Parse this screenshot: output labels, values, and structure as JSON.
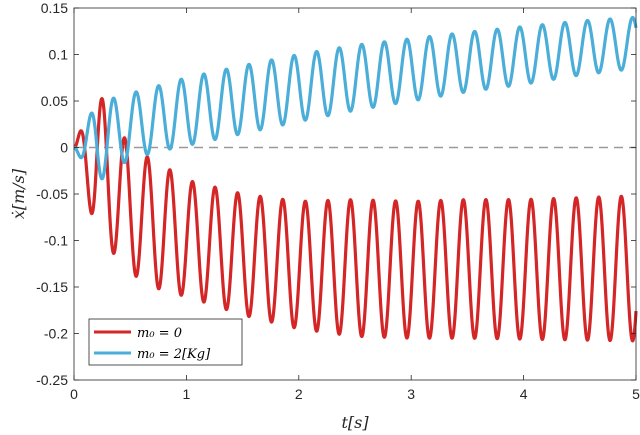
{
  "chart_data": {
    "type": "line",
    "xlabel": "t[s]",
    "ylabel": "ẋ[m/s]",
    "xlim": [
      0,
      5
    ],
    "ylim": [
      -0.25,
      0.15
    ],
    "xticks": [
      "0",
      "1",
      "2",
      "3",
      "4",
      "5"
    ],
    "yticks": [
      "0.15",
      "0.1",
      "0.05",
      "0",
      "-0.05",
      "-0.1",
      "-0.15",
      "-0.2",
      "-0.25"
    ],
    "grid": false,
    "legend_position": "bottom-left",
    "reference_line": {
      "y": 0,
      "style": "dashed",
      "color": "#999999"
    },
    "series": [
      {
        "name": "m₀ = 0",
        "color": "#d42626",
        "frequency_hz": 4.98,
        "points": {
          "x": [
            0,
            0.2,
            0.5,
            0.8,
            1.0,
            1.5,
            2.0,
            2.5,
            3.0,
            3.5,
            4.0,
            4.5,
            5.0
          ],
          "upper": [
            0.0,
            0.063,
            0.0,
            -0.02,
            -0.035,
            -0.05,
            -0.058,
            -0.056,
            -0.058,
            -0.056,
            -0.056,
            -0.054,
            -0.052
          ],
          "lower": [
            0.0,
            -0.092,
            -0.135,
            -0.155,
            -0.16,
            -0.18,
            -0.195,
            -0.203,
            -0.205,
            -0.205,
            -0.206,
            -0.207,
            -0.208
          ]
        }
      },
      {
        "name": "m₀ = 2[Kg]",
        "color": "#4aaed9",
        "frequency_hz": 4.98,
        "points": {
          "x": [
            0,
            0.2,
            0.5,
            0.8,
            1.0,
            1.5,
            2.0,
            2.5,
            3.0,
            3.5,
            4.0,
            4.5,
            5.0
          ],
          "upper": [
            0.0,
            0.048,
            0.058,
            0.068,
            0.075,
            0.088,
            0.1,
            0.11,
            0.117,
            0.124,
            0.13,
            0.136,
            0.14
          ],
          "lower": [
            0.0,
            -0.038,
            -0.012,
            -0.003,
            0.002,
            0.015,
            0.028,
            0.04,
            0.05,
            0.06,
            0.068,
            0.078,
            0.085
          ]
        }
      }
    ]
  }
}
